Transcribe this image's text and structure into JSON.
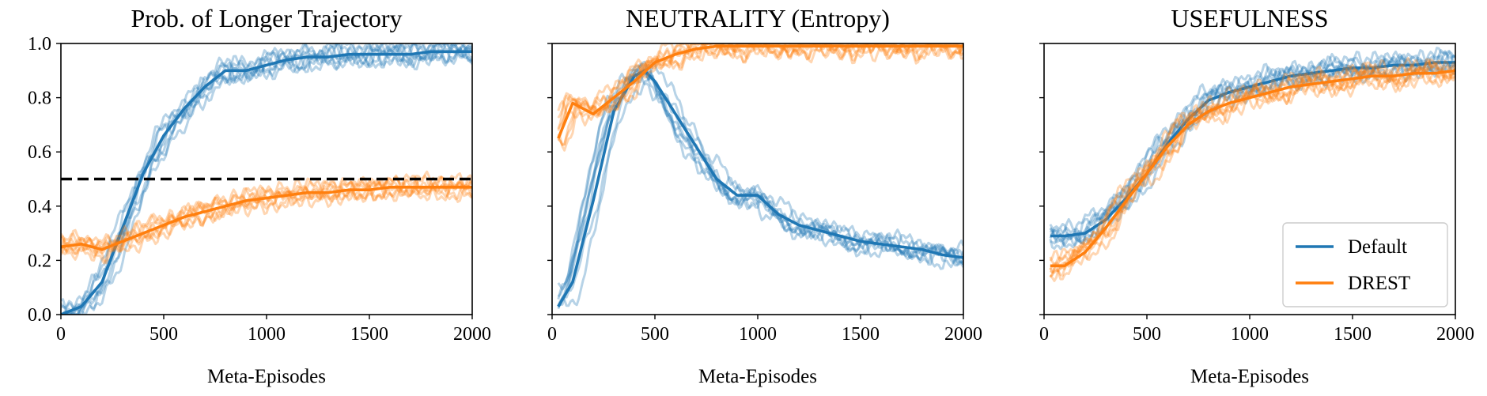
{
  "chart_data": [
    {
      "type": "line",
      "title": "Prob. of Longer Trajectory",
      "xlabel": "Meta-Episodes",
      "ylabel": "",
      "xlim": [
        0,
        2000
      ],
      "ylim": [
        0,
        1
      ],
      "xticks": [
        0,
        500,
        1000,
        1500,
        2000
      ],
      "yticks": [
        0.0,
        0.2,
        0.4,
        0.6,
        0.8,
        1.0
      ],
      "yticklabels": [
        "0.0",
        "0.2",
        "0.4",
        "0.6",
        "0.8",
        "1.0"
      ],
      "reference_line": {
        "y": 0.5,
        "style": "dashed",
        "color": "#000000"
      },
      "series": [
        {
          "name": "Default",
          "color": "#1f77b4",
          "x": [
            0,
            100,
            200,
            300,
            400,
            500,
            600,
            700,
            800,
            900,
            1000,
            1100,
            1200,
            1300,
            1400,
            1500,
            1600,
            1700,
            1800,
            1900,
            2000
          ],
          "values": [
            0.0,
            0.03,
            0.12,
            0.32,
            0.52,
            0.66,
            0.76,
            0.84,
            0.9,
            0.9,
            0.92,
            0.94,
            0.95,
            0.95,
            0.96,
            0.96,
            0.96,
            0.96,
            0.97,
            0.97,
            0.97
          ]
        },
        {
          "name": "DREST",
          "color": "#ff7f0e",
          "x": [
            0,
            100,
            200,
            300,
            400,
            500,
            600,
            700,
            800,
            900,
            1000,
            1100,
            1200,
            1300,
            1400,
            1500,
            1600,
            1700,
            1800,
            1900,
            2000
          ],
          "values": [
            0.25,
            0.26,
            0.24,
            0.27,
            0.3,
            0.33,
            0.36,
            0.38,
            0.4,
            0.42,
            0.43,
            0.44,
            0.45,
            0.45,
            0.46,
            0.46,
            0.47,
            0.47,
            0.47,
            0.47,
            0.47
          ]
        }
      ]
    },
    {
      "type": "line",
      "title": "NEUTRALITY (Entropy)",
      "xlabel": "Meta-Episodes",
      "ylabel": "",
      "xlim": [
        0,
        2000
      ],
      "ylim": [
        0,
        1
      ],
      "xticks": [
        0,
        500,
        1000,
        1500,
        2000
      ],
      "yticks": [
        0.0,
        0.2,
        0.4,
        0.6,
        0.8,
        1.0
      ],
      "yticklabels": [],
      "series": [
        {
          "name": "Default",
          "color": "#1f77b4",
          "x": [
            30,
            100,
            200,
            300,
            400,
            450,
            500,
            600,
            700,
            800,
            900,
            1000,
            1100,
            1200,
            1300,
            1400,
            1500,
            1600,
            1700,
            1800,
            1900,
            2000
          ],
          "values": [
            0.03,
            0.12,
            0.42,
            0.75,
            0.88,
            0.9,
            0.86,
            0.74,
            0.62,
            0.5,
            0.44,
            0.44,
            0.37,
            0.33,
            0.31,
            0.29,
            0.27,
            0.26,
            0.25,
            0.24,
            0.22,
            0.21
          ]
        },
        {
          "name": "DREST",
          "color": "#ff7f0e",
          "x": [
            30,
            100,
            200,
            300,
            400,
            500,
            600,
            700,
            800,
            900,
            1000,
            1200,
            1400,
            1600,
            1800,
            2000
          ],
          "values": [
            0.65,
            0.78,
            0.74,
            0.8,
            0.86,
            0.93,
            0.96,
            0.98,
            0.99,
            0.99,
            0.99,
            0.99,
            0.99,
            0.99,
            0.99,
            0.99
          ]
        }
      ]
    },
    {
      "type": "line",
      "title": "USEFULNESS",
      "xlabel": "Meta-Episodes",
      "ylabel": "",
      "xlim": [
        0,
        2000
      ],
      "ylim": [
        0,
        1
      ],
      "xticks": [
        0,
        500,
        1000,
        1500,
        2000
      ],
      "yticks": [
        0.0,
        0.2,
        0.4,
        0.6,
        0.8,
        1.0
      ],
      "yticklabels": [],
      "legend": {
        "location": "lower right",
        "entries": [
          "Default",
          "DREST"
        ]
      },
      "series": [
        {
          "name": "Default",
          "color": "#1f77b4",
          "x": [
            30,
            100,
            200,
            300,
            400,
            500,
            600,
            700,
            800,
            900,
            1000,
            1100,
            1200,
            1300,
            1400,
            1500,
            1600,
            1700,
            1800,
            1900,
            2000
          ],
          "values": [
            0.29,
            0.29,
            0.3,
            0.35,
            0.43,
            0.52,
            0.63,
            0.72,
            0.79,
            0.82,
            0.84,
            0.86,
            0.88,
            0.89,
            0.9,
            0.91,
            0.91,
            0.92,
            0.92,
            0.93,
            0.93
          ]
        },
        {
          "name": "DREST",
          "color": "#ff7f0e",
          "x": [
            30,
            100,
            200,
            300,
            400,
            500,
            600,
            700,
            800,
            900,
            1000,
            1100,
            1200,
            1300,
            1400,
            1500,
            1600,
            1700,
            1800,
            1900,
            2000
          ],
          "values": [
            0.18,
            0.18,
            0.23,
            0.32,
            0.42,
            0.52,
            0.62,
            0.7,
            0.75,
            0.78,
            0.8,
            0.82,
            0.84,
            0.85,
            0.86,
            0.87,
            0.88,
            0.88,
            0.89,
            0.89,
            0.9
          ]
        }
      ]
    }
  ]
}
